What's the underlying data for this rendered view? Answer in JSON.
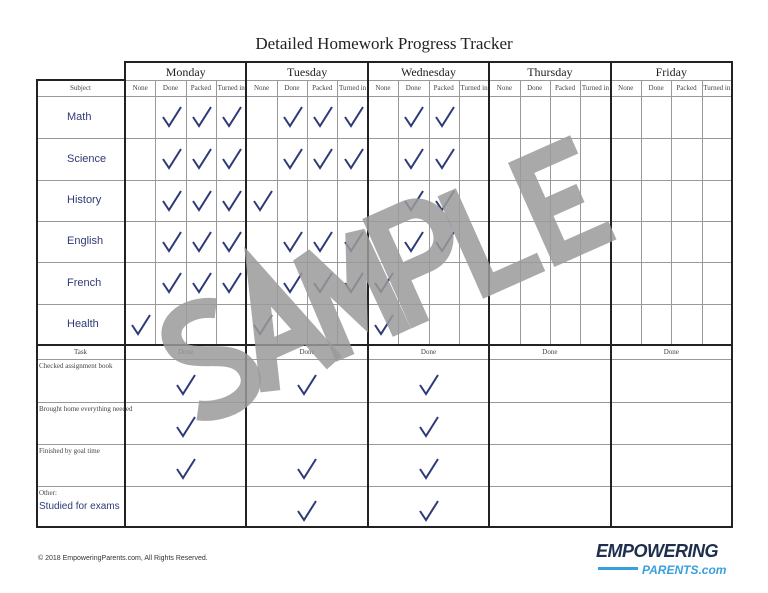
{
  "title": "Detailed Homework Progress Tracker",
  "days": [
    "Monday",
    "Tuesday",
    "Wednesday",
    "Thursday",
    "Friday"
  ],
  "subject_header": "Subject",
  "columns": [
    "None",
    "Done",
    "Packed",
    "Turned in"
  ],
  "subjects": [
    {
      "name": "Math",
      "checks": [
        [
          "Done",
          "Packed",
          "Turned in"
        ],
        [
          "Done",
          "Packed",
          "Turned in"
        ],
        [
          "Done",
          "Packed"
        ],
        [],
        []
      ]
    },
    {
      "name": "Science",
      "checks": [
        [
          "Done",
          "Packed",
          "Turned in"
        ],
        [
          "Done",
          "Packed",
          "Turned in"
        ],
        [
          "Done",
          "Packed"
        ],
        [],
        []
      ]
    },
    {
      "name": "History",
      "checks": [
        [
          "Done",
          "Packed",
          "Turned in"
        ],
        [
          "None"
        ],
        [
          "Done",
          "Packed"
        ],
        [],
        []
      ]
    },
    {
      "name": "English",
      "checks": [
        [
          "Done",
          "Packed",
          "Turned in"
        ],
        [
          "Done",
          "Packed",
          "Turned in"
        ],
        [
          "Done",
          "Packed"
        ],
        [],
        []
      ]
    },
    {
      "name": "French",
      "checks": [
        [
          "Done",
          "Packed",
          "Turned in"
        ],
        [
          "Done",
          "Packed",
          "Turned in"
        ],
        [
          "None"
        ],
        [],
        []
      ]
    },
    {
      "name": "Health",
      "checks": [
        [
          "None"
        ],
        [
          "None"
        ],
        [
          "None"
        ],
        [],
        []
      ]
    }
  ],
  "task_header": "Task",
  "task_column": "Done",
  "tasks": [
    {
      "prefix": "",
      "name": "Checked assignment book",
      "done": [
        true,
        true,
        true,
        false,
        false
      ]
    },
    {
      "prefix": "",
      "name": "Brought home everything needed",
      "done": [
        true,
        false,
        true,
        false,
        false
      ]
    },
    {
      "prefix": "",
      "name": "Finished by goal time",
      "done": [
        true,
        true,
        true,
        false,
        false
      ]
    },
    {
      "prefix": "Other:",
      "name": "Studied for exams",
      "done": [
        false,
        true,
        true,
        false,
        false
      ]
    }
  ],
  "check_icon": "checkmark-icon",
  "check_color": "#2e3a78",
  "watermark": "SAMPLE",
  "footer": "© 2018 EmpoweringParents.com, All Rights Reserved.",
  "logo": {
    "line1": "EMPOWERING",
    "line2": "PARENTS.com"
  }
}
